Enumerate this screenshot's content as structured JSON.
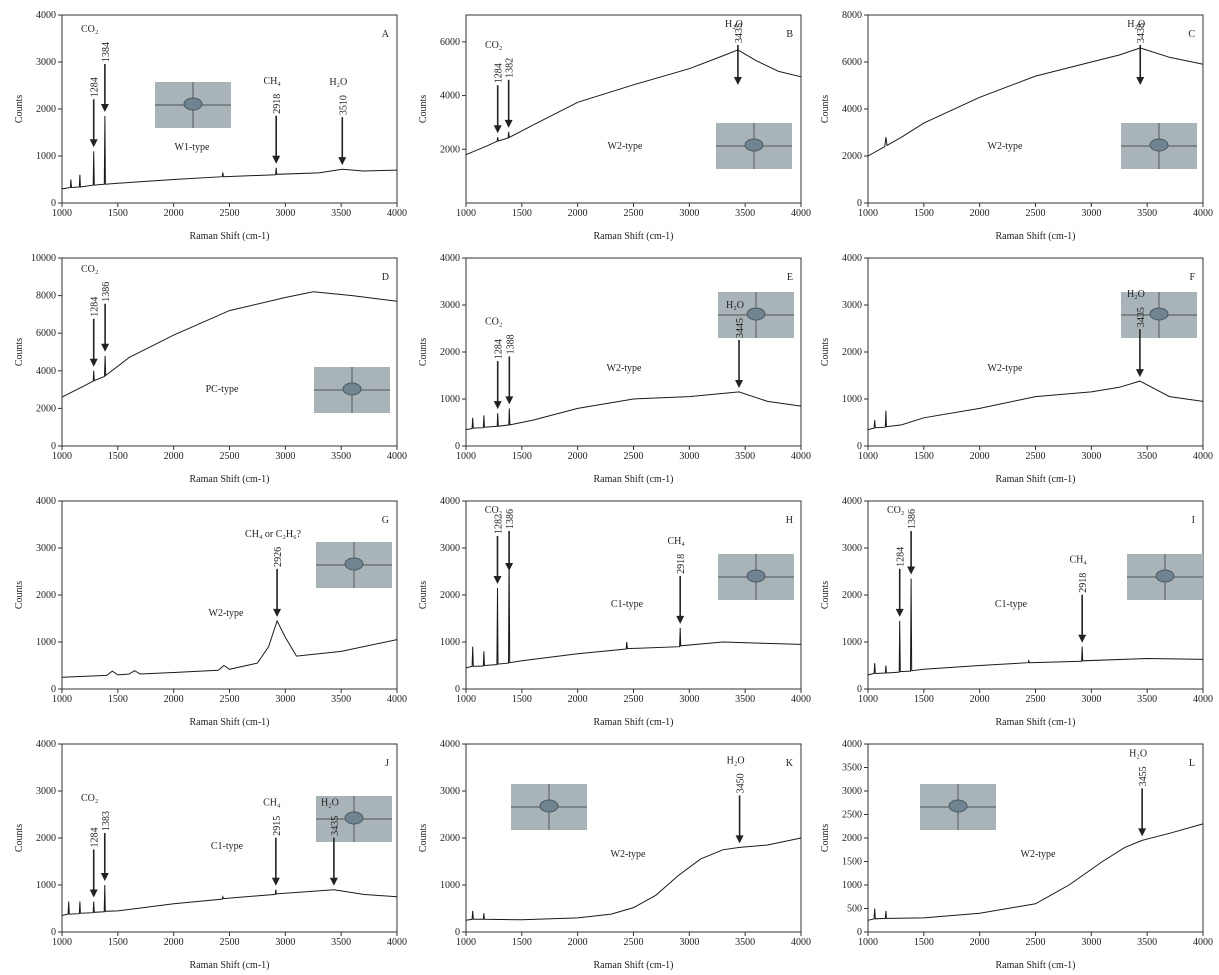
{
  "chart_data": [
    {
      "type": "line",
      "panel": "A",
      "type_label": "W1-type",
      "xlabel": "Raman Shift (cm-1)",
      "ylabel": "Counts",
      "xlim": [
        1000,
        4000
      ],
      "ylim": [
        0,
        4000
      ],
      "xticks": [
        1000,
        1500,
        2000,
        2500,
        3000,
        3500,
        4000
      ],
      "yticks": [
        0,
        1000,
        2000,
        3000,
        4000
      ],
      "x": [
        1000,
        1075,
        1080,
        1085,
        1155,
        1160,
        1165,
        1279,
        1284,
        1289,
        1379,
        1384,
        1389,
        1500,
        2000,
        2435,
        2440,
        2445,
        2913,
        2918,
        2923,
        3300,
        3510,
        3700,
        4000
      ],
      "series": [
        {
          "color": "#1a1a1a",
          "values": [
            300,
            330,
            500,
            330,
            340,
            600,
            340,
            380,
            1100,
            380,
            400,
            1850,
            400,
            420,
            500,
            560,
            650,
            560,
            600,
            750,
            610,
            640,
            720,
            680,
            700
          ]
        }
      ],
      "annotations": [
        {
          "text": "CO₂",
          "color": "#e0201b",
          "peaks": [
            1284,
            1384
          ]
        },
        {
          "text": "CH₄",
          "color": "#e0201b",
          "peaks": [
            2918
          ]
        },
        {
          "text": "H₂O",
          "color": "#e0201b",
          "peaks": [
            3510
          ]
        }
      ]
    },
    {
      "type": "line",
      "panel": "B",
      "type_label": "W2-type",
      "xlabel": "Raman Shift (cm-1)",
      "ylabel": "Counts",
      "xlim": [
        1000,
        4000
      ],
      "ylim": [
        0,
        7000
      ],
      "xticks": [
        1000,
        1500,
        2000,
        2500,
        3000,
        3500,
        4000
      ],
      "yticks": [
        2000,
        4000,
        6000
      ],
      "x": [
        1000,
        1200,
        1279,
        1284,
        1289,
        1377,
        1382,
        1387,
        1600,
        2000,
        2500,
        3000,
        3250,
        3435,
        3600,
        3800,
        4000
      ],
      "series": [
        {
          "color": "#1a1a1a",
          "values": [
            1800,
            2150,
            2300,
            2450,
            2310,
            2420,
            2650,
            2440,
            2900,
            3750,
            4400,
            5000,
            5400,
            5700,
            5300,
            4900,
            4700
          ]
        }
      ],
      "annotations": [
        {
          "text": "CO₂",
          "color": "#e0201b",
          "peaks": [
            1284,
            1382
          ]
        },
        {
          "text": "H₂O",
          "color": "#e0201b",
          "peaks": [
            3435
          ]
        }
      ]
    },
    {
      "type": "line",
      "panel": "C",
      "type_label": "W2-type",
      "xlabel": "Raman Shift (cm-1)",
      "ylabel": "Counts",
      "xlim": [
        1000,
        4000
      ],
      "ylim": [
        0,
        8000
      ],
      "xticks": [
        1000,
        1500,
        2000,
        2500,
        3000,
        3500,
        4000
      ],
      "yticks": [
        0,
        2000,
        4000,
        6000,
        8000
      ],
      "x": [
        1000,
        1150,
        1160,
        1170,
        1300,
        1500,
        2000,
        2500,
        3000,
        3250,
        3438,
        3700,
        4000
      ],
      "series": [
        {
          "color": "#1a1a1a",
          "values": [
            2000,
            2400,
            2800,
            2450,
            2800,
            3400,
            4500,
            5400,
            6000,
            6300,
            6600,
            6200,
            5900
          ]
        }
      ],
      "annotations": [
        {
          "text": "H₂O",
          "color": "#e0201b",
          "peaks": [
            3438
          ]
        }
      ]
    },
    {
      "type": "line",
      "panel": "D",
      "type_label": "PC-type",
      "xlabel": "Raman Shift (cm-1)",
      "ylabel": "Counts",
      "xlim": [
        1000,
        4000
      ],
      "ylim": [
        0,
        10000
      ],
      "xticks": [
        1000,
        1500,
        2000,
        2500,
        3000,
        3500,
        4000
      ],
      "yticks": [
        0,
        2000,
        4000,
        6000,
        8000,
        10000
      ],
      "x": [
        1000,
        1200,
        1279,
        1284,
        1289,
        1381,
        1386,
        1391,
        1600,
        2000,
        2500,
        3000,
        3250,
        3600,
        4000
      ],
      "series": [
        {
          "color": "#1a1a1a",
          "values": [
            2600,
            3200,
            3450,
            4000,
            3480,
            3700,
            4800,
            3750,
            4700,
            5900,
            7200,
            7900,
            8200,
            8000,
            7700
          ]
        }
      ],
      "annotations": [
        {
          "text": "CO₂",
          "color": "#e0201b",
          "peaks": [
            1284,
            1386
          ]
        }
      ]
    },
    {
      "type": "line",
      "panel": "E",
      "type_label": "W2-type",
      "xlabel": "Raman Shift (cm-1)",
      "ylabel": "Counts",
      "xlim": [
        1000,
        4000
      ],
      "ylim": [
        0,
        4000
      ],
      "xticks": [
        1000,
        1500,
        2000,
        2500,
        3000,
        3500,
        4000
      ],
      "yticks": [
        0,
        1000,
        2000,
        3000,
        4000
      ],
      "x": [
        1000,
        1055,
        1060,
        1065,
        1155,
        1160,
        1165,
        1279,
        1284,
        1289,
        1383,
        1388,
        1393,
        1600,
        2000,
        2500,
        3000,
        3445,
        3700,
        4000
      ],
      "series": [
        {
          "color": "#1a1a1a",
          "values": [
            350,
            370,
            600,
            380,
            390,
            650,
            400,
            420,
            700,
            420,
            450,
            800,
            450,
            550,
            800,
            1000,
            1050,
            1150,
            950,
            850
          ]
        }
      ],
      "annotations": [
        {
          "text": "CO₂",
          "color": "#e0201b",
          "peaks": [
            1284,
            1388
          ]
        },
        {
          "text": "H₂O",
          "color": "#e0201b",
          "peaks": [
            3445
          ]
        }
      ]
    },
    {
      "type": "line",
      "panel": "F",
      "type_label": "W2-type",
      "xlabel": "Raman Shift (cm-1)",
      "ylabel": "Counts",
      "xlim": [
        1000,
        4000
      ],
      "ylim": [
        0,
        4000
      ],
      "xticks": [
        1000,
        1500,
        2000,
        2500,
        3000,
        3500,
        4000
      ],
      "yticks": [
        0,
        1000,
        2000,
        3000,
        4000
      ],
      "x": [
        1000,
        1055,
        1060,
        1065,
        1155,
        1160,
        1165,
        1300,
        1500,
        2000,
        2500,
        3000,
        3250,
        3435,
        3700,
        4000
      ],
      "series": [
        {
          "color": "#1a1a1a",
          "values": [
            350,
            380,
            550,
            390,
            400,
            750,
            410,
            450,
            600,
            800,
            1050,
            1150,
            1250,
            1380,
            1050,
            950
          ]
        }
      ],
      "annotations": [
        {
          "text": "H₂O",
          "color": "#e0201b",
          "peaks": [
            3435
          ]
        }
      ]
    },
    {
      "type": "line",
      "panel": "G",
      "type_label": "W2-type",
      "xlabel": "Raman Shift (cm-1)",
      "ylabel": "Counts",
      "xlim": [
        1000,
        4000
      ],
      "ylim": [
        0,
        4000
      ],
      "xticks": [
        1000,
        1500,
        2000,
        2500,
        3000,
        3500,
        4000
      ],
      "yticks": [
        0,
        1000,
        2000,
        3000,
        4000
      ],
      "x": [
        1000,
        1400,
        1450,
        1500,
        1600,
        1650,
        1700,
        2000,
        2400,
        2450,
        2500,
        2750,
        2850,
        2926,
        3000,
        3100,
        3500,
        4000
      ],
      "series": [
        {
          "color": "#1a1a1a",
          "values": [
            250,
            290,
            380,
            300,
            320,
            390,
            320,
            350,
            400,
            500,
            420,
            550,
            900,
            1450,
            1100,
            700,
            800,
            1050
          ]
        }
      ],
      "annotations": [
        {
          "text": "CH₄ or C₂H₆?",
          "color": "#e0201b",
          "peaks": [
            2926
          ]
        }
      ]
    },
    {
      "type": "line",
      "panel": "H",
      "type_label": "C1-type",
      "xlabel": "Raman Shift (cm-1)",
      "ylabel": "Counts",
      "xlim": [
        1000,
        4000
      ],
      "ylim": [
        0,
        4000
      ],
      "xticks": [
        1000,
        1500,
        2000,
        2500,
        3000,
        3500,
        4000
      ],
      "yticks": [
        0,
        1000,
        2000,
        3000,
        4000
      ],
      "x": [
        1000,
        1055,
        1060,
        1065,
        1155,
        1160,
        1165,
        1277,
        1282,
        1287,
        1381,
        1386,
        1391,
        1500,
        2000,
        2435,
        2440,
        2445,
        2913,
        2918,
        2923,
        3300,
        4000
      ],
      "series": [
        {
          "color": "#1a1a1a",
          "values": [
            450,
            480,
            900,
            480,
            490,
            800,
            500,
            520,
            2150,
            530,
            550,
            2900,
            560,
            600,
            750,
            850,
            1000,
            860,
            900,
            1300,
            920,
            1000,
            950
          ]
        }
      ],
      "annotations": [
        {
          "text": "CO₂",
          "color": "#e0201b",
          "peaks": [
            1282,
            1386
          ]
        },
        {
          "text": "CH₄",
          "color": "#e0201b",
          "peaks": [
            2918
          ]
        }
      ]
    },
    {
      "type": "line",
      "panel": "I",
      "type_label": "C1-type",
      "xlabel": "Raman Shift (cm-1)",
      "ylabel": "Counts",
      "xlim": [
        1000,
        4000
      ],
      "ylim": [
        0,
        4000
      ],
      "xticks": [
        1000,
        1500,
        2000,
        2500,
        3000,
        3500,
        4000
      ],
      "yticks": [
        0,
        1000,
        2000,
        3000,
        4000
      ],
      "x": [
        1000,
        1055,
        1060,
        1065,
        1155,
        1160,
        1165,
        1279,
        1284,
        1289,
        1381,
        1386,
        1391,
        1500,
        2000,
        2435,
        2440,
        2445,
        2913,
        2918,
        2923,
        3500,
        4000
      ],
      "series": [
        {
          "color": "#1a1a1a",
          "values": [
            300,
            330,
            550,
            330,
            340,
            500,
            340,
            360,
            1450,
            370,
            380,
            2350,
            390,
            420,
            500,
            560,
            600,
            560,
            590,
            900,
            600,
            650,
            630
          ]
        }
      ],
      "annotations": [
        {
          "text": "CO₂",
          "color": "#e0201b",
          "peaks": [
            1284,
            1386
          ]
        },
        {
          "text": "CH₄",
          "color": "#e0201b",
          "peaks": [
            2918
          ]
        }
      ]
    },
    {
      "type": "line",
      "panel": "J",
      "type_label": "C1-type",
      "xlabel": "Raman Shift (cm-1)",
      "ylabel": "Counts",
      "xlim": [
        1000,
        4000
      ],
      "ylim": [
        0,
        4000
      ],
      "xticks": [
        1000,
        1500,
        2000,
        2500,
        3000,
        3500,
        4000
      ],
      "yticks": [
        0,
        1000,
        2000,
        3000,
        4000
      ],
      "x": [
        1000,
        1055,
        1060,
        1065,
        1155,
        1160,
        1165,
        1279,
        1284,
        1289,
        1378,
        1383,
        1388,
        1500,
        2000,
        2435,
        2440,
        2445,
        2910,
        2915,
        2920,
        3435,
        3700,
        4000
      ],
      "series": [
        {
          "color": "#1a1a1a",
          "values": [
            350,
            380,
            650,
            380,
            390,
            650,
            400,
            410,
            650,
            420,
            430,
            1000,
            440,
            450,
            600,
            700,
            750,
            710,
            800,
            900,
            810,
            900,
            800,
            750
          ]
        }
      ],
      "annotations": [
        {
          "text": "CO₂",
          "color": "#e0201b",
          "peaks": [
            1284,
            1383
          ]
        },
        {
          "text": "CH₄",
          "color": "#e0201b",
          "peaks": [
            2915
          ]
        },
        {
          "text": "H₂O",
          "color": "#e0201b",
          "peaks": [
            3435
          ]
        }
      ]
    },
    {
      "type": "line",
      "panel": "K",
      "type_label": "W2-type",
      "xlabel": "Raman Shift (cm-1)",
      "ylabel": "Counts",
      "xlim": [
        1000,
        4000
      ],
      "ylim": [
        0,
        4000
      ],
      "xticks": [
        1000,
        1500,
        2000,
        2500,
        3000,
        3500,
        4000
      ],
      "yticks": [
        0,
        1000,
        2000,
        3000,
        4000
      ],
      "x": [
        1000,
        1055,
        1060,
        1065,
        1155,
        1160,
        1165,
        1500,
        2000,
        2300,
        2500,
        2700,
        2900,
        3100,
        3300,
        3450,
        3700,
        4000
      ],
      "series": [
        {
          "color": "#1a1a1a",
          "values": [
            250,
            270,
            450,
            270,
            270,
            400,
            270,
            260,
            300,
            380,
            520,
            780,
            1200,
            1550,
            1750,
            1800,
            1850,
            2000
          ]
        }
      ],
      "annotations": [
        {
          "text": "H₂O",
          "color": "#1a1a1a",
          "peaks": [
            3450
          ]
        }
      ]
    },
    {
      "type": "line",
      "panel": "L",
      "type_label": "W2-type",
      "xlabel": "Raman Shift (cm-1)",
      "ylabel": "Counts",
      "xlim": [
        1000,
        4000
      ],
      "ylim": [
        0,
        4000
      ],
      "xticks": [
        1000,
        1500,
        2000,
        2500,
        3000,
        3500,
        4000
      ],
      "yticks": [
        0,
        500,
        1000,
        1500,
        2000,
        2500,
        3000,
        3500,
        4000
      ],
      "x": [
        1000,
        1055,
        1060,
        1065,
        1155,
        1160,
        1165,
        1500,
        2000,
        2500,
        2800,
        3100,
        3300,
        3455,
        3700,
        4000
      ],
      "series": [
        {
          "color": "#1a1a1a",
          "values": [
            250,
            280,
            500,
            280,
            290,
            450,
            290,
            300,
            400,
            600,
            1000,
            1500,
            1800,
            1950,
            2100,
            2300
          ]
        }
      ],
      "annotations": [
        {
          "text": "H₂O",
          "color": "#1a1a1a",
          "peaks": [
            3455
          ]
        }
      ]
    }
  ]
}
